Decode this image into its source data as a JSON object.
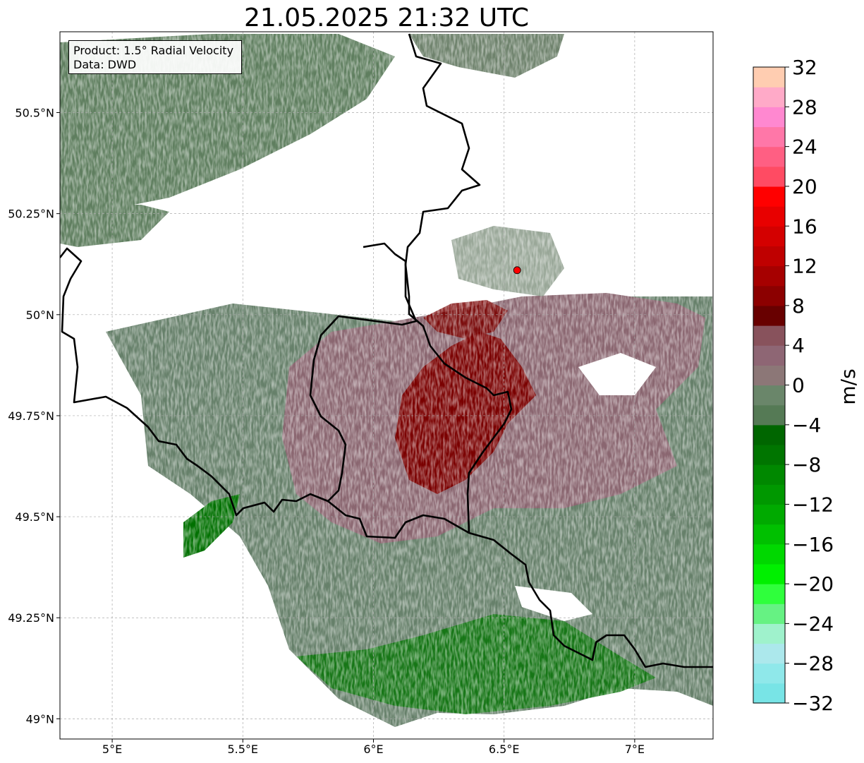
{
  "title": "21.05.2025 21:32 UTC",
  "info": {
    "product": "Product: 1.5° Radial Velocity",
    "data": "Data: DWD"
  },
  "map": {
    "lon_range": [
      4.8,
      7.3
    ],
    "lat_range": [
      48.95,
      50.7
    ],
    "x_ticks": [
      {
        "value": 5.0,
        "label": "5°E"
      },
      {
        "value": 5.5,
        "label": "5.5°E"
      },
      {
        "value": 6.0,
        "label": "6°E"
      },
      {
        "value": 6.5,
        "label": "6.5°E"
      },
      {
        "value": 7.0,
        "label": "7°E"
      }
    ],
    "y_ticks": [
      {
        "value": 50.5,
        "label": "50.5°N"
      },
      {
        "value": 50.25,
        "label": "50.25°N"
      },
      {
        "value": 50.0,
        "label": "50°N"
      },
      {
        "value": 49.75,
        "label": "49.75°N"
      },
      {
        "value": 49.5,
        "label": "49.5°N"
      },
      {
        "value": 49.25,
        "label": "49.25°N"
      },
      {
        "value": 49.0,
        "label": "49°N"
      }
    ],
    "radar_site": {
      "lon": 6.55,
      "lat": 50.11,
      "color": "#ff0000"
    },
    "gridlines": true
  },
  "colorbar": {
    "unit": "m/s",
    "min": -32,
    "max": 32,
    "ticks": [
      {
        "value": 32,
        "label": "32"
      },
      {
        "value": 28,
        "label": "28"
      },
      {
        "value": 24,
        "label": "24"
      },
      {
        "value": 20,
        "label": "20"
      },
      {
        "value": 16,
        "label": "16"
      },
      {
        "value": 12,
        "label": "12"
      },
      {
        "value": 8,
        "label": "8"
      },
      {
        "value": 4,
        "label": "4"
      },
      {
        "value": 0,
        "label": "0"
      },
      {
        "value": -4,
        "label": "−4"
      },
      {
        "value": -8,
        "label": "−8"
      },
      {
        "value": -12,
        "label": "−12"
      },
      {
        "value": -16,
        "label": "−16"
      },
      {
        "value": -20,
        "label": "−20"
      },
      {
        "value": -24,
        "label": "−24"
      },
      {
        "value": -28,
        "label": "−28"
      },
      {
        "value": -32,
        "label": "−32"
      }
    ],
    "colors_bottom_to_top": [
      "#78e4e6",
      "#8fe8ea",
      "#ace8ec",
      "#9ff2cc",
      "#66f283",
      "#2fff3c",
      "#00f000",
      "#00d800",
      "#00c000",
      "#00aa00",
      "#009800",
      "#008800",
      "#007500",
      "#006600",
      "#557a55",
      "#6a866a",
      "#8c7777",
      "#8e6674",
      "#88525c",
      "#680000",
      "#8c0000",
      "#a60000",
      "#bf0000",
      "#d40000",
      "#e80000",
      "#ff0000",
      "#ff4b63",
      "#ff5f83",
      "#ff77a8",
      "#ff88d0",
      "#ffaac8",
      "#ffcdb1"
    ]
  }
}
